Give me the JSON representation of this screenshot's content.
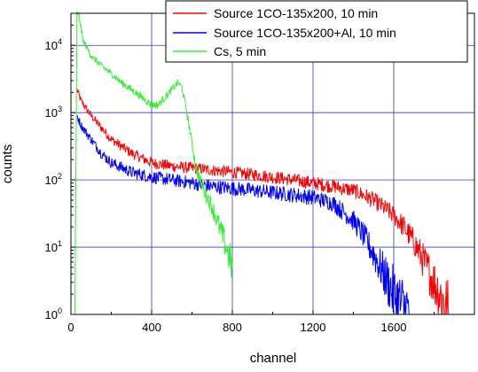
{
  "chart_data": {
    "type": "line",
    "xlabel": "channel",
    "ylabel": "counts",
    "xlim": [
      0,
      2000
    ],
    "ylim": [
      1,
      30000
    ],
    "y_scale": "log",
    "grid": true,
    "legend_position": "top-right",
    "x_ticks": [
      "0",
      "400",
      "800",
      "1200",
      "1600"
    ],
    "x_tick_values": [
      0,
      400,
      800,
      1200,
      1600
    ],
    "y_ticks": [
      {
        "base": "10",
        "exp": "0",
        "value": 1
      },
      {
        "base": "10",
        "exp": "1",
        "value": 10
      },
      {
        "base": "10",
        "exp": "2",
        "value": 100
      },
      {
        "base": "10",
        "exp": "3",
        "value": 1000
      },
      {
        "base": "10",
        "exp": "4",
        "value": 10000
      }
    ],
    "series": [
      {
        "name": "Source 1CO-135x200, 10 min",
        "color": "#ff0000",
        "x": [
          30,
          50,
          100,
          150,
          200,
          300,
          400,
          500,
          600,
          700,
          800,
          900,
          1000,
          1100,
          1200,
          1300,
          1400,
          1500,
          1600,
          1650,
          1700,
          1750,
          1800,
          1850,
          1870
        ],
        "y": [
          2200,
          1500,
          900,
          600,
          400,
          250,
          180,
          160,
          150,
          140,
          130,
          120,
          110,
          100,
          90,
          80,
          70,
          50,
          30,
          20,
          12,
          6,
          3,
          1.5,
          1
        ]
      },
      {
        "name": "Source 1CO-135x200+Al, 10 min",
        "color": "#0000ff",
        "x": [
          30,
          50,
          100,
          150,
          200,
          300,
          400,
          500,
          600,
          700,
          800,
          900,
          1000,
          1100,
          1200,
          1300,
          1400,
          1450,
          1500,
          1550,
          1600,
          1650,
          1680
        ],
        "y": [
          900,
          650,
          400,
          250,
          180,
          130,
          110,
          100,
          90,
          80,
          75,
          70,
          65,
          60,
          55,
          45,
          25,
          15,
          8,
          4,
          2,
          1.2,
          1
        ]
      },
      {
        "name": "Cs, 5 min",
        "color": "#33ee33",
        "x": [
          20,
          30,
          40,
          60,
          100,
          150,
          200,
          250,
          300,
          350,
          400,
          430,
          460,
          500,
          530,
          550,
          570,
          600,
          620,
          650,
          700,
          750,
          780,
          800
        ],
        "y": [
          1,
          30000,
          28000,
          12000,
          7000,
          5000,
          3800,
          2800,
          2200,
          1700,
          1300,
          1300,
          1600,
          2200,
          2800,
          2400,
          1200,
          350,
          150,
          80,
          40,
          15,
          8,
          5
        ]
      }
    ]
  }
}
